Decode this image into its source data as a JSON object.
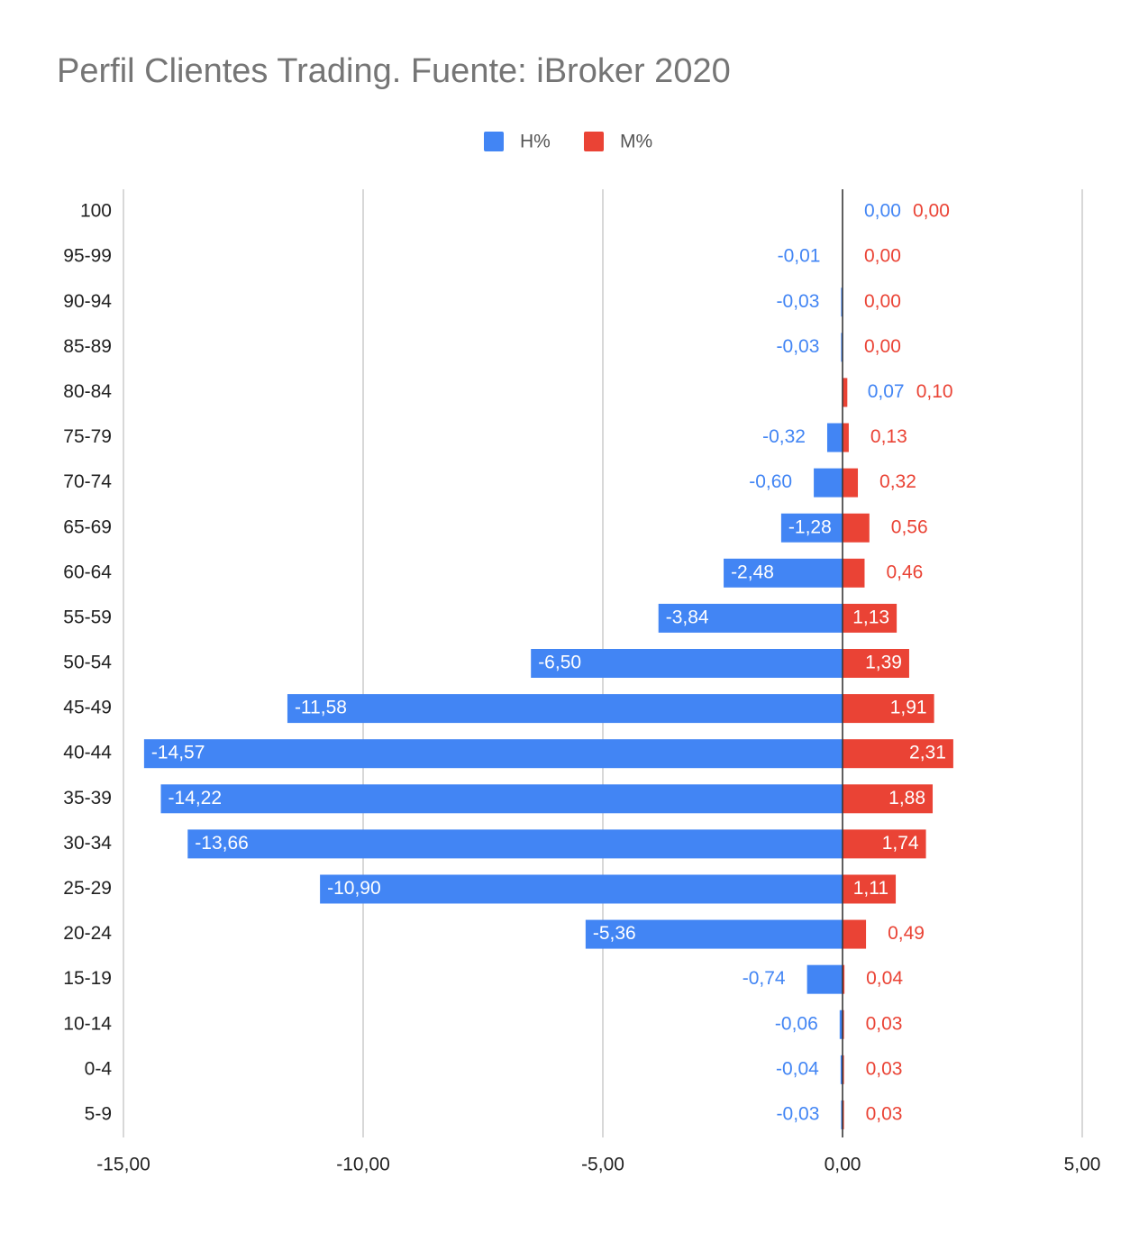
{
  "chart_data": {
    "type": "bar",
    "orientation": "horizontal",
    "title": "Perfil Clientes Trading. Fuente: iBroker 2020",
    "categories": [
      "100",
      "95-99",
      "90-94",
      "85-89",
      "80-84",
      "75-79",
      "70-74",
      "65-69",
      "60-64",
      "55-59",
      "50-54",
      "45-49",
      "40-44",
      "35-39",
      "30-34",
      "25-29",
      "20-24",
      "15-19",
      "10-14",
      "0-4",
      "5-9"
    ],
    "series": [
      {
        "name": "H%",
        "color": "#4285f4",
        "values": [
          0,
          -0.01,
          -0.03,
          -0.03,
          0.07,
          -0.32,
          -0.6,
          -1.28,
          -2.48,
          -3.84,
          -6.5,
          -11.58,
          -14.57,
          -14.22,
          -13.66,
          -10.9,
          -5.36,
          -0.74,
          -0.06,
          -0.04,
          -0.03
        ],
        "value_labels": [
          "0,00",
          "-0,01",
          "-0,03",
          "-0,03",
          "0,07",
          "-0,32",
          "-0,60",
          "-1,28",
          "-2,48",
          "-3,84",
          "-6,50",
          "-11,58",
          "-14,57",
          "-14,22",
          "-13,66",
          "-10,90",
          "-5,36",
          "-0,74",
          "-0,06",
          "-0,04",
          "-0,03"
        ]
      },
      {
        "name": "M%",
        "color": "#ea4335",
        "values": [
          0,
          0,
          0,
          0,
          0.1,
          0.13,
          0.32,
          0.56,
          0.46,
          1.13,
          1.39,
          1.91,
          2.31,
          1.88,
          1.74,
          1.11,
          0.49,
          0.04,
          0.03,
          0.03,
          0.03
        ],
        "value_labels": [
          "0,00",
          "0,00",
          "0,00",
          "0,00",
          "0,10",
          "0,13",
          "0,32",
          "0,56",
          "0,46",
          "1,13",
          "1,39",
          "1,91",
          "2,31",
          "1,88",
          "1,74",
          "1,11",
          "0,49",
          "0,04",
          "0,03",
          "0,03",
          "0,03"
        ]
      }
    ],
    "xlim": [
      -15,
      5
    ],
    "xticks": [
      {
        "value": -15,
        "label": "-15,00"
      },
      {
        "value": -10,
        "label": "-10,00"
      },
      {
        "value": -5,
        "label": "-5,00"
      },
      {
        "value": 0,
        "label": "0,00"
      },
      {
        "value": 5,
        "label": "5,00"
      }
    ],
    "grid": true,
    "legend": "top"
  }
}
